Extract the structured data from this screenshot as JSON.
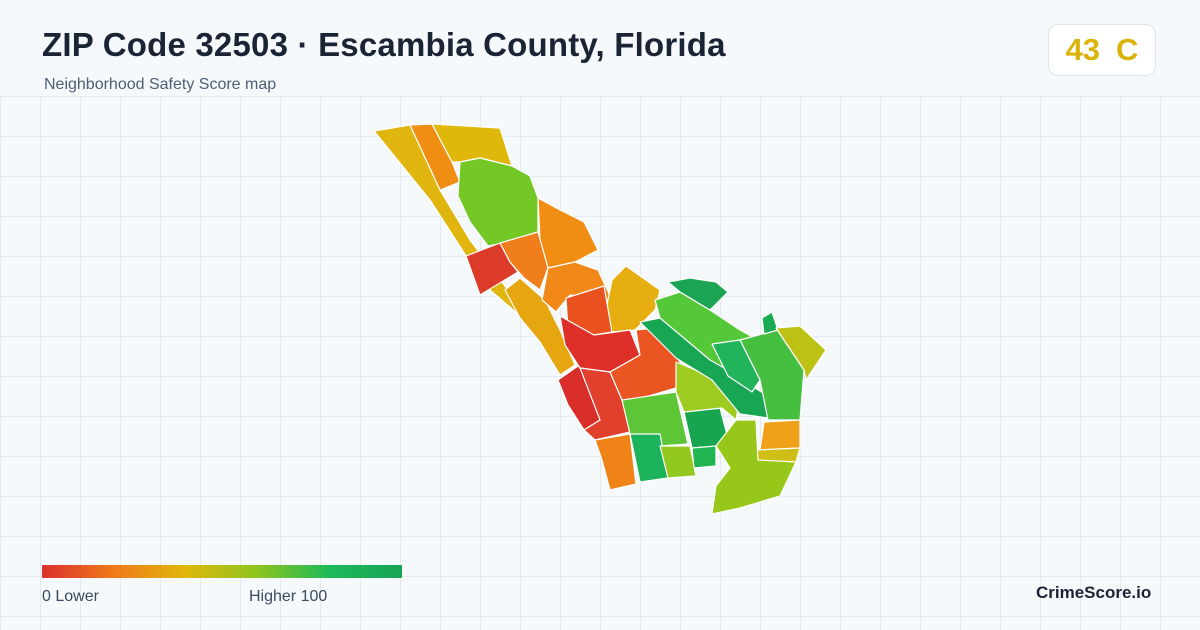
{
  "header": {
    "title": "ZIP Code 32503 · Escambia County, Florida",
    "subtitle": "Neighborhood Safety Score map"
  },
  "score_badge": {
    "score": "43",
    "grade": "C",
    "color": "#d9b308"
  },
  "legend": {
    "low_label": "0  Lower",
    "high_label": "Higher  100",
    "gradient_colors": [
      "#dc2f2f",
      "#f07a1a",
      "#e0b80c",
      "#8cc41e",
      "#1cb95a",
      "#17a354"
    ]
  },
  "brand": "CrimeScore.io"
}
